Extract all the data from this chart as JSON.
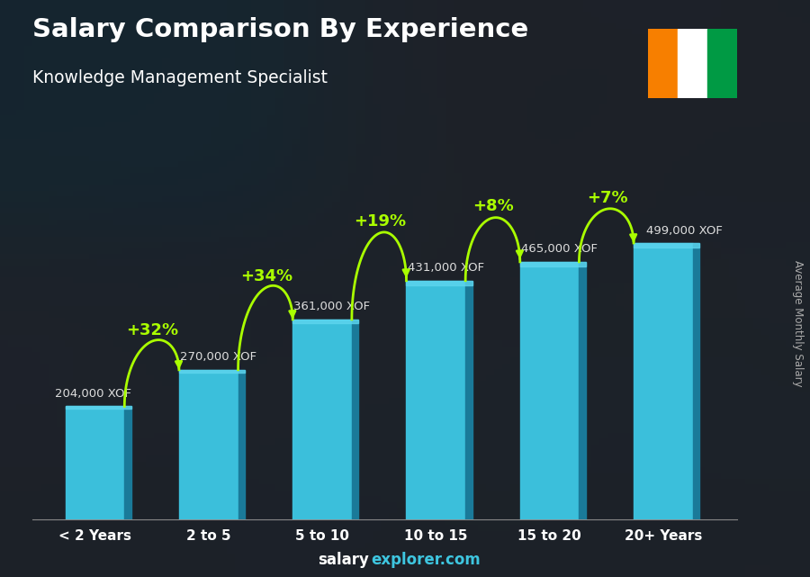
{
  "title": "Salary Comparison By Experience",
  "subtitle": "Knowledge Management Specialist",
  "categories": [
    "< 2 Years",
    "2 to 5",
    "5 to 10",
    "10 to 15",
    "15 to 20",
    "20+ Years"
  ],
  "values": [
    204000,
    270000,
    361000,
    431000,
    465000,
    499000
  ],
  "labels": [
    "204,000 XOF",
    "270,000 XOF",
    "361,000 XOF",
    "431,000 XOF",
    "465,000 XOF",
    "499,000 XOF"
  ],
  "pct_changes": [
    "+32%",
    "+34%",
    "+19%",
    "+8%",
    "+7%"
  ],
  "bar_color_main": "#3bbfdb",
  "bar_color_side": "#1a7a99",
  "bar_color_top": "#5dd5ee",
  "bg_color": "#1a2535",
  "text_color": "#ffffff",
  "label_color": "#dddddd",
  "pct_color": "#aaff00",
  "ylabel": "Average Monthly Salary",
  "flag_orange": "#F77F00",
  "flag_white": "#FFFFFF",
  "flag_green": "#009A44"
}
